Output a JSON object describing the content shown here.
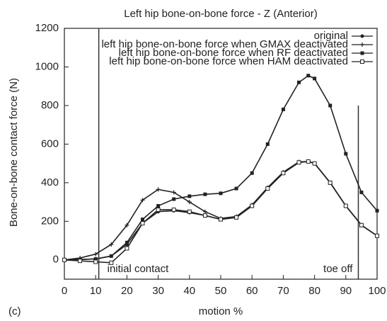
{
  "chart_data": {
    "type": "line",
    "title": "Left hip bone-on-bone force - Z (Anterior)",
    "xlabel": "motion %",
    "ylabel": "Bone-on-bone contact force (N)",
    "panel_label": "(c)",
    "x": [
      0,
      5,
      10,
      15,
      20,
      25,
      30,
      35,
      40,
      45,
      50,
      55,
      60,
      65,
      70,
      75,
      78,
      80,
      85,
      90,
      95,
      100
    ],
    "series": [
      {
        "name": "original",
        "color": "#222222",
        "marker": "circle",
        "values": [
          0,
          2,
          5,
          20,
          80,
          190,
          250,
          255,
          245,
          230,
          210,
          220,
          280,
          370,
          450,
          505,
          510,
          500,
          400,
          280,
          180,
          125
        ]
      },
      {
        "name": "left hip bone-on-bone force when GMAX deactivated",
        "color": "#222222",
        "marker": "plus",
        "values": [
          0,
          10,
          30,
          80,
          180,
          310,
          365,
          350,
          300,
          250,
          215,
          225,
          285,
          375,
          455,
          508,
          510,
          500,
          400,
          280,
          180,
          125
        ]
      },
      {
        "name": "left hip bone-on-bone force when RF deactivated",
        "color": "#222222",
        "marker": "square",
        "values": [
          0,
          2,
          5,
          20,
          90,
          210,
          280,
          315,
          330,
          340,
          345,
          370,
          450,
          600,
          780,
          920,
          955,
          940,
          800,
          550,
          350,
          255
        ]
      },
      {
        "name": "left hip bone-on-bone force when HAM deactivated",
        "color": "#222222",
        "marker": "open-square",
        "values": [
          0,
          -5,
          -10,
          -15,
          60,
          190,
          260,
          260,
          250,
          230,
          210,
          220,
          280,
          370,
          450,
          505,
          510,
          500,
          400,
          280,
          180,
          125
        ]
      }
    ],
    "markers": [
      {
        "label": "initial contact",
        "x": 11,
        "top": 1200
      },
      {
        "label": "toe off",
        "x": 94,
        "top": 800
      }
    ],
    "xlim": [
      0,
      100
    ],
    "xticks": [
      0,
      10,
      20,
      30,
      40,
      50,
      60,
      70,
      80,
      90,
      100
    ],
    "ylim": [
      -100,
      1200
    ],
    "yticks": [
      0,
      200,
      400,
      600,
      800,
      1000,
      1200
    ],
    "legend": "upper right",
    "grid": false
  }
}
